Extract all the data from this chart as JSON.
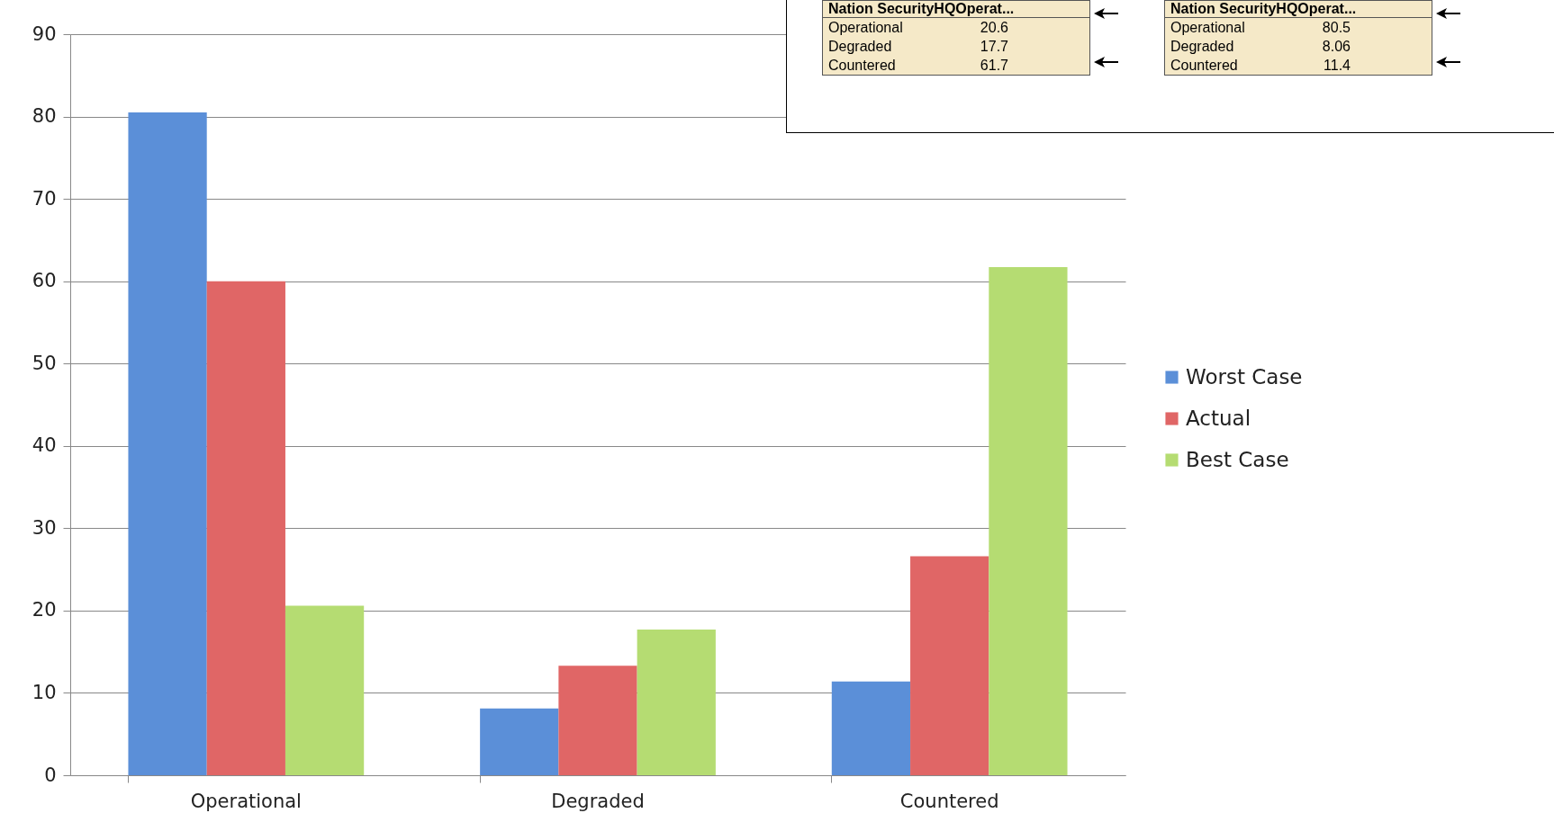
{
  "chart_data": {
    "type": "bar",
    "categories": [
      "Operational",
      "Degraded",
      "Countered"
    ],
    "series": [
      {
        "name": "Worst Case",
        "color": "#5b8fd8",
        "values": [
          80.5,
          8.1,
          11.4
        ]
      },
      {
        "name": "Actual",
        "color": "#e06666",
        "values": [
          60,
          13.3,
          26.6
        ]
      },
      {
        "name": "Best Case",
        "color": "#b5dc72",
        "values": [
          20.6,
          17.7,
          61.7
        ]
      }
    ],
    "ylim": [
      0,
      90
    ],
    "yticks": [
      0,
      10,
      20,
      30,
      40,
      50,
      60,
      70,
      80,
      90
    ],
    "grid": "y",
    "legend": "right",
    "annotations": [
      "Nation SecurityHQOperat...",
      "Operational",
      "20.6",
      "Degraded",
      "17.7",
      "Countered",
      "61.7",
      "Nation SecurityHQOperat...",
      "Operational",
      "80.5",
      "Degraded",
      "8.06",
      "Countered",
      "11.4"
    ]
  }
}
